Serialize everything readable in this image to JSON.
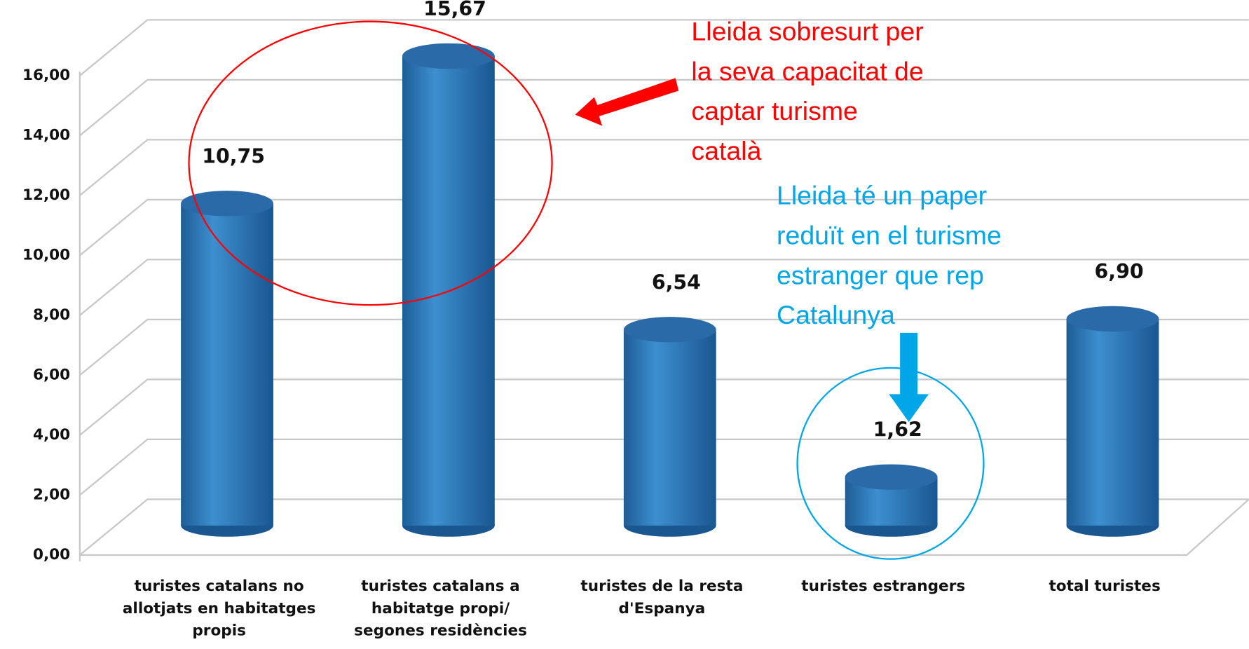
{
  "chart_data": {
    "type": "bar3d",
    "categories": [
      "turistes catalans no allotjats en habitatges propis",
      "turistes catalans a habitatge propi/ segones residències",
      "turistes de la resta d'Espanya",
      "turistes estrangers",
      "total turistes"
    ],
    "values": [
      10.75,
      15.67,
      6.54,
      1.62,
      6.9
    ],
    "value_labels": [
      "10,75",
      "15,67",
      "6,54",
      "1,62",
      "6,90"
    ],
    "color": "#2f7fc1",
    "ylim": [
      0,
      16
    ],
    "yticks": [
      {
        "value": 0,
        "label": "0,00"
      },
      {
        "value": 2,
        "label": "2,00"
      },
      {
        "value": 4,
        "label": "4,00"
      },
      {
        "value": 6,
        "label": "6,00"
      },
      {
        "value": 8,
        "label": "8,00"
      },
      {
        "value": 10,
        "label": "10,00"
      },
      {
        "value": 12,
        "label": "12,00"
      },
      {
        "value": 14,
        "label": "14,00"
      },
      {
        "value": 16,
        "label": "16,00"
      }
    ],
    "grid": true,
    "annotations": [
      {
        "lines": [
          "Lleida sobresurt per",
          "la seva capacitat de",
          "captar turisme",
          "català"
        ],
        "color": "#ff0000"
      },
      {
        "lines": [
          "Lleida té un paper",
          "reduït en el turisme",
          "estranger que rep",
          "Catalunya"
        ],
        "color": "#00a6e8"
      }
    ]
  }
}
